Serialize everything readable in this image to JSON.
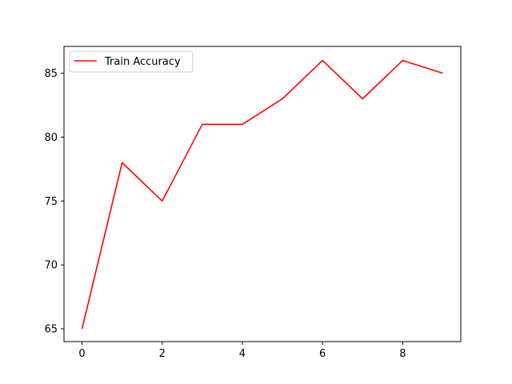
{
  "chart_data": {
    "type": "line",
    "x": [
      0,
      1,
      2,
      3,
      4,
      5,
      6,
      7,
      8,
      9
    ],
    "series": [
      {
        "name": "Train Accuracy",
        "color": "#ff0000",
        "values": [
          65,
          78,
          75,
          81,
          81,
          83,
          86,
          83,
          86,
          85
        ]
      }
    ],
    "title": "",
    "xlabel": "",
    "ylabel": "",
    "xlim": [
      -0.45,
      9.45
    ],
    "ylim": [
      64.0,
      87.1
    ],
    "xticks": [
      0,
      2,
      4,
      6,
      8
    ],
    "yticks": [
      65,
      70,
      75,
      80,
      85
    ],
    "grid": false,
    "legend_position": "top-left"
  }
}
